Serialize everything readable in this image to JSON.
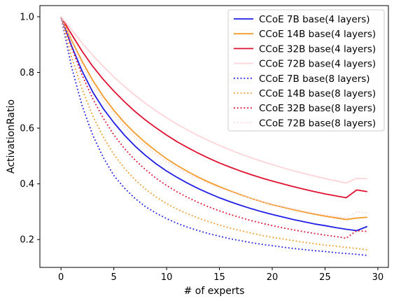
{
  "chart_data": {
    "type": "line",
    "title": "",
    "xlabel": "# of experts",
    "ylabel": "ActivationRatio",
    "xlim": [
      -2,
      31
    ],
    "ylim": [
      0.1,
      1.04
    ],
    "xticks": [
      0,
      5,
      10,
      15,
      20,
      25,
      30
    ],
    "yticks": [
      0.2,
      0.4,
      0.6,
      0.8,
      1.0
    ],
    "xtick_labels": [
      "0",
      "5",
      "10",
      "15",
      "20",
      "25",
      "30"
    ],
    "ytick_labels": [
      "0.2",
      "0.4",
      "0.6",
      "0.8",
      "1.0"
    ],
    "grid": false,
    "legend_position": "top-right",
    "x": [
      0,
      1,
      2,
      3,
      4,
      5,
      6,
      7,
      8,
      9,
      10,
      11,
      12,
      13,
      14,
      15,
      16,
      17,
      18,
      19,
      20,
      21,
      22,
      23,
      24,
      25,
      26,
      27,
      28,
      29
    ],
    "series": [
      {
        "name": "CCoE 7B base(4 layers)",
        "color": "#1f1fe6",
        "style": "solid",
        "values": [
          1.0,
          0.895,
          0.805,
          0.73,
          0.67,
          0.62,
          0.575,
          0.536,
          0.502,
          0.472,
          0.446,
          0.423,
          0.402,
          0.383,
          0.366,
          0.35,
          0.336,
          0.323,
          0.311,
          0.3,
          0.29,
          0.281,
          0.272,
          0.264,
          0.256,
          0.25,
          0.243,
          0.237,
          0.232,
          0.247
        ]
      },
      {
        "name": "CCoE 14B base(4 layers)",
        "color": "#f39b2a",
        "style": "solid",
        "values": [
          1.0,
          0.915,
          0.84,
          0.772,
          0.714,
          0.664,
          0.62,
          0.582,
          0.548,
          0.518,
          0.49,
          0.466,
          0.444,
          0.424,
          0.406,
          0.39,
          0.375,
          0.361,
          0.348,
          0.336,
          0.325,
          0.316,
          0.307,
          0.299,
          0.291,
          0.284,
          0.278,
          0.272,
          0.277,
          0.28
        ]
      },
      {
        "name": "CCoE 32B base(4 layers)",
        "color": "#e0102f",
        "style": "solid",
        "values": [
          1.0,
          0.937,
          0.876,
          0.822,
          0.775,
          0.733,
          0.695,
          0.66,
          0.629,
          0.601,
          0.575,
          0.551,
          0.53,
          0.51,
          0.492,
          0.475,
          0.46,
          0.446,
          0.433,
          0.421,
          0.41,
          0.4,
          0.39,
          0.381,
          0.372,
          0.364,
          0.357,
          0.35,
          0.378,
          0.372
        ]
      },
      {
        "name": "CCoE 72B base(4 layers)",
        "color": "#ffd4d8",
        "style": "solid",
        "values": [
          1.0,
          0.953,
          0.906,
          0.862,
          0.822,
          0.784,
          0.75,
          0.718,
          0.689,
          0.662,
          0.637,
          0.614,
          0.593,
          0.573,
          0.555,
          0.538,
          0.522,
          0.507,
          0.494,
          0.481,
          0.469,
          0.458,
          0.447,
          0.437,
          0.428,
          0.419,
          0.411,
          0.403,
          0.42,
          0.418
        ]
      },
      {
        "name": "CCoE 7B base(8 layers)",
        "color": "#1f1fe6",
        "style": "dotted",
        "values": [
          1.0,
          0.82,
          0.68,
          0.575,
          0.495,
          0.43,
          0.385,
          0.348,
          0.318,
          0.295,
          0.275,
          0.258,
          0.244,
          0.232,
          0.221,
          0.212,
          0.203,
          0.196,
          0.189,
          0.183,
          0.178,
          0.173,
          0.168,
          0.164,
          0.16,
          0.157,
          0.153,
          0.15,
          0.147,
          0.143
        ]
      },
      {
        "name": "CCoE 14B base(8 layers)",
        "color": "#f39b2a",
        "style": "dotted",
        "values": [
          1.0,
          0.855,
          0.74,
          0.645,
          0.568,
          0.506,
          0.456,
          0.415,
          0.381,
          0.353,
          0.329,
          0.309,
          0.292,
          0.277,
          0.264,
          0.252,
          0.241,
          0.232,
          0.223,
          0.215,
          0.208,
          0.202,
          0.196,
          0.19,
          0.185,
          0.18,
          0.176,
          0.172,
          0.168,
          0.163
        ]
      },
      {
        "name": "CCoE 32B base(8 layers)",
        "color": "#e0102f",
        "style": "dotted",
        "values": [
          1.0,
          0.89,
          0.79,
          0.706,
          0.636,
          0.576,
          0.527,
          0.486,
          0.451,
          0.42,
          0.394,
          0.371,
          0.351,
          0.333,
          0.317,
          0.303,
          0.29,
          0.279,
          0.268,
          0.259,
          0.25,
          0.242,
          0.235,
          0.228,
          0.222,
          0.216,
          0.211,
          0.205,
          0.232,
          0.229
        ]
      },
      {
        "name": "CCoE 72B base(8 layers)",
        "color": "#ffd4d8",
        "style": "dotted",
        "values": [
          1.0,
          0.91,
          0.83,
          0.76,
          0.7,
          0.65,
          0.606,
          0.568,
          0.535,
          0.506,
          0.48,
          0.457,
          0.436,
          0.418,
          0.401,
          0.386,
          0.372,
          0.359,
          0.348,
          0.337,
          0.327,
          0.318,
          0.31,
          0.302,
          0.295,
          0.289,
          0.283,
          0.277,
          0.3,
          0.295
        ]
      }
    ]
  }
}
